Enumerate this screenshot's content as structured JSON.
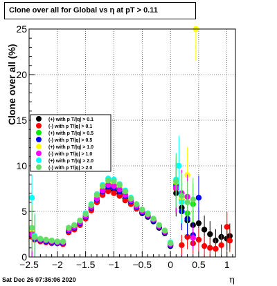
{
  "title": "Clone  over all for Global vs   η at pT > 0.11",
  "date_stamp": "Sat Dec 26 07:36:06 2020",
  "chart_data": {
    "type": "scatter",
    "title": "Clone  over all for Global vs   η at pT > 0.11",
    "xlabel": "η",
    "ylabel": "Clone  over all (%)",
    "xlim": [
      -2.5,
      1.15
    ],
    "ylim": [
      0,
      25
    ],
    "x_ticks": [
      -2.5,
      -2,
      -1.5,
      -1,
      -0.5,
      0,
      0.5,
      1
    ],
    "x_tick_labels": [
      "−2.5",
      "−2",
      "−1.5",
      "−1",
      "−0.5",
      "0",
      "0.5",
      "1"
    ],
    "y_ticks": [
      0,
      5,
      10,
      15,
      20,
      25
    ],
    "y_tick_labels": [
      "0",
      "5",
      "10",
      "15",
      "20",
      "25"
    ],
    "grid": true,
    "legend_position": "left-middle",
    "series": [
      {
        "name": "(+) with p T/|q| > 0.1",
        "color": "#000000",
        "points": [
          [
            -2.45,
            2.6
          ],
          [
            -2.4,
            2.0
          ],
          [
            -2.3,
            1.8
          ],
          [
            -2.2,
            1.7
          ],
          [
            -2.1,
            1.6
          ],
          [
            -2.0,
            1.5
          ],
          [
            -1.9,
            1.5
          ],
          [
            -1.8,
            2.8
          ],
          [
            -1.7,
            3.1
          ],
          [
            -1.6,
            3.6
          ],
          [
            -1.5,
            4.3
          ],
          [
            -1.4,
            5.2
          ],
          [
            -1.3,
            6.1
          ],
          [
            -1.2,
            7.0
          ],
          [
            -1.1,
            7.5
          ],
          [
            -1.0,
            7.3
          ],
          [
            -0.9,
            6.9
          ],
          [
            -0.8,
            6.4
          ],
          [
            -0.7,
            5.9
          ],
          [
            -0.6,
            5.3
          ],
          [
            -0.5,
            4.8
          ],
          [
            -0.4,
            4.4
          ],
          [
            -0.3,
            3.9
          ],
          [
            -0.2,
            3.2
          ],
          [
            -0.1,
            2.6
          ],
          [
            0.0,
            1.2
          ],
          [
            0.1,
            7.0
          ],
          [
            0.2,
            5.4
          ],
          [
            0.3,
            4.0
          ],
          [
            0.4,
            3.5
          ],
          [
            0.5,
            3.7
          ],
          [
            0.6,
            3.0
          ],
          [
            0.7,
            2.5
          ],
          [
            0.8,
            1.8
          ],
          [
            0.9,
            2.2
          ],
          [
            1.0,
            2.0
          ],
          [
            1.05,
            2.3
          ]
        ]
      },
      {
        "name": "(-) with p T/|q| > 0.1",
        "color": "#ff0000",
        "points": [
          [
            -2.45,
            2.2
          ],
          [
            -2.4,
            1.9
          ],
          [
            -2.3,
            1.7
          ],
          [
            -2.2,
            1.6
          ],
          [
            -2.1,
            1.5
          ],
          [
            -2.0,
            1.5
          ],
          [
            -1.9,
            1.4
          ],
          [
            -1.8,
            2.7
          ],
          [
            -1.7,
            3.0
          ],
          [
            -1.6,
            3.5
          ],
          [
            -1.5,
            4.2
          ],
          [
            -1.4,
            5.1
          ],
          [
            -1.3,
            6.0
          ],
          [
            -1.2,
            6.8
          ],
          [
            -1.1,
            7.2
          ],
          [
            -1.0,
            7.0
          ],
          [
            -0.9,
            6.7
          ],
          [
            -0.8,
            6.2
          ],
          [
            -0.7,
            5.8
          ],
          [
            -0.6,
            5.3
          ],
          [
            -0.5,
            4.9
          ],
          [
            -0.4,
            4.5
          ],
          [
            -0.3,
            4.0
          ],
          [
            -0.2,
            3.3
          ],
          [
            -0.1,
            2.7
          ],
          [
            0.0,
            1.3
          ],
          [
            0.1,
            7.5
          ],
          [
            0.2,
            1.3
          ],
          [
            0.3,
            2.2
          ],
          [
            0.4,
            1.5
          ],
          [
            0.5,
            1.9
          ],
          [
            0.6,
            1.2
          ],
          [
            0.7,
            1.0
          ],
          [
            0.8,
            0.9
          ],
          [
            0.9,
            1.3
          ],
          [
            1.0,
            3.3
          ],
          [
            1.05,
            1.8
          ]
        ]
      },
      {
        "name": "(+) with p T/|q| > 0.5",
        "color": "#00ee00",
        "points": [
          [
            -2.45,
            2.9
          ],
          [
            -2.4,
            2.1
          ],
          [
            -2.3,
            1.9
          ],
          [
            -2.2,
            1.8
          ],
          [
            -2.1,
            1.7
          ],
          [
            -2.0,
            1.6
          ],
          [
            -1.9,
            1.6
          ],
          [
            -1.8,
            3.0
          ],
          [
            -1.7,
            3.3
          ],
          [
            -1.6,
            3.8
          ],
          [
            -1.5,
            4.5
          ],
          [
            -1.4,
            5.5
          ],
          [
            -1.3,
            6.5
          ],
          [
            -1.2,
            7.4
          ],
          [
            -1.1,
            8.0
          ],
          [
            -1.0,
            7.9
          ],
          [
            -0.9,
            7.5
          ],
          [
            -0.8,
            6.9
          ],
          [
            -0.7,
            6.2
          ],
          [
            -0.6,
            5.6
          ],
          [
            -0.5,
            5.0
          ],
          [
            -0.4,
            4.6
          ],
          [
            -0.3,
            4.1
          ],
          [
            -0.2,
            3.4
          ],
          [
            -0.1,
            2.8
          ],
          [
            0.0,
            1.4
          ],
          [
            0.1,
            8.0
          ],
          [
            0.2,
            6.3
          ],
          [
            0.3,
            4.8
          ],
          [
            0.4,
            5.8
          ]
        ]
      },
      {
        "name": "(-) with p T/|q| > 0.5",
        "color": "#0000ff",
        "points": [
          [
            -2.45,
            2.4
          ],
          [
            -2.4,
            2.0
          ],
          [
            -2.3,
            1.8
          ],
          [
            -2.2,
            1.7
          ],
          [
            -2.1,
            1.6
          ],
          [
            -2.0,
            1.5
          ],
          [
            -1.9,
            1.5
          ],
          [
            -1.8,
            2.9
          ],
          [
            -1.7,
            3.2
          ],
          [
            -1.6,
            3.7
          ],
          [
            -1.5,
            4.4
          ],
          [
            -1.4,
            5.4
          ],
          [
            -1.3,
            6.3
          ],
          [
            -1.2,
            7.2
          ],
          [
            -1.1,
            7.7
          ],
          [
            -1.0,
            7.6
          ],
          [
            -0.9,
            7.2
          ],
          [
            -0.8,
            6.7
          ],
          [
            -0.7,
            6.1
          ],
          [
            -0.6,
            5.5
          ],
          [
            -0.5,
            4.9
          ],
          [
            -0.4,
            4.5
          ],
          [
            -0.3,
            4.0
          ],
          [
            -0.2,
            3.3
          ],
          [
            -0.1,
            2.7
          ],
          [
            0.0,
            1.3
          ],
          [
            0.1,
            7.8
          ],
          [
            0.2,
            5.0
          ],
          [
            0.3,
            4.2
          ],
          [
            0.4,
            2.4
          ],
          [
            0.5,
            6.5
          ]
        ]
      },
      {
        "name": "(+) with p T/|q| > 1.0",
        "color": "#ffff00",
        "points": [
          [
            -2.45,
            3.0
          ],
          [
            -2.4,
            2.2
          ],
          [
            -2.3,
            2.0
          ],
          [
            -2.2,
            1.9
          ],
          [
            -2.1,
            1.8
          ],
          [
            -2.0,
            1.7
          ],
          [
            -1.9,
            1.7
          ],
          [
            -1.8,
            3.1
          ],
          [
            -1.7,
            3.4
          ],
          [
            -1.6,
            3.9
          ],
          [
            -1.5,
            4.6
          ],
          [
            -1.4,
            5.6
          ],
          [
            -1.3,
            6.6
          ],
          [
            -1.2,
            7.6
          ],
          [
            -1.1,
            8.2
          ],
          [
            -1.0,
            8.1
          ],
          [
            -0.9,
            7.7
          ],
          [
            -0.8,
            7.1
          ],
          [
            -0.7,
            6.3
          ],
          [
            -0.6,
            5.7
          ],
          [
            -0.5,
            5.1
          ],
          [
            -0.4,
            4.7
          ],
          [
            -0.3,
            4.2
          ],
          [
            -0.2,
            3.5
          ],
          [
            -0.1,
            2.9
          ],
          [
            0.0,
            1.5
          ],
          [
            0.1,
            8.2
          ],
          [
            0.2,
            6.5
          ],
          [
            0.3,
            9.0
          ],
          [
            0.45,
            25.0
          ]
        ]
      },
      {
        "name": "(-) with p T/|q| > 1.0",
        "color": "#ff00ff",
        "points": [
          [
            -2.45,
            2.5
          ],
          [
            -2.4,
            2.1
          ],
          [
            -2.3,
            1.9
          ],
          [
            -2.2,
            1.8
          ],
          [
            -2.1,
            1.7
          ],
          [
            -2.0,
            1.6
          ],
          [
            -1.9,
            1.6
          ],
          [
            -1.8,
            3.0
          ],
          [
            -1.7,
            3.3
          ],
          [
            -1.6,
            3.8
          ],
          [
            -1.5,
            4.5
          ],
          [
            -1.4,
            5.5
          ],
          [
            -1.3,
            6.4
          ],
          [
            -1.2,
            7.3
          ],
          [
            -1.1,
            7.9
          ],
          [
            -1.0,
            7.8
          ],
          [
            -0.9,
            7.4
          ],
          [
            -0.8,
            6.8
          ],
          [
            -0.7,
            6.2
          ],
          [
            -0.6,
            5.6
          ],
          [
            -0.5,
            5.0
          ],
          [
            -0.4,
            4.6
          ],
          [
            -0.3,
            4.1
          ],
          [
            -0.2,
            3.4
          ],
          [
            -0.1,
            2.8
          ],
          [
            0.0,
            1.4
          ],
          [
            0.1,
            7.6
          ],
          [
            0.2,
            7.0
          ],
          [
            0.3,
            6.6
          ],
          [
            0.4,
            2.1
          ]
        ]
      },
      {
        "name": "(+) with p T/|q| > 2.0",
        "color": "#00ffff",
        "points": [
          [
            -2.45,
            6.5
          ],
          [
            -2.4,
            2.3
          ],
          [
            -2.3,
            2.0
          ],
          [
            -2.2,
            1.9
          ],
          [
            -2.1,
            1.8
          ],
          [
            -2.0,
            1.7
          ],
          [
            -1.9,
            1.7
          ],
          [
            -1.8,
            3.2
          ],
          [
            -1.7,
            3.5
          ],
          [
            -1.6,
            4.0
          ],
          [
            -1.5,
            4.8
          ],
          [
            -1.4,
            5.8
          ],
          [
            -1.3,
            6.9
          ],
          [
            -1.2,
            7.9
          ],
          [
            -1.1,
            8.6
          ],
          [
            -1.0,
            8.5
          ],
          [
            -0.9,
            8.0
          ],
          [
            -0.8,
            7.3
          ],
          [
            -0.7,
            6.5
          ],
          [
            -0.6,
            5.8
          ],
          [
            -0.5,
            5.2
          ],
          [
            -0.4,
            4.8
          ],
          [
            -0.3,
            4.2
          ],
          [
            -0.2,
            3.5
          ],
          [
            -0.1,
            2.9
          ],
          [
            0.0,
            1.6
          ],
          [
            0.1,
            8.5
          ],
          [
            0.15,
            10.0
          ],
          [
            0.2,
            6.0
          ]
        ]
      },
      {
        "name": "(-) with p T/|q| > 2.0",
        "color": "#66dd66",
        "points": [
          [
            -2.45,
            3.2
          ],
          [
            -2.4,
            2.2
          ],
          [
            -2.3,
            2.0
          ],
          [
            -2.2,
            1.9
          ],
          [
            -2.1,
            1.8
          ],
          [
            -2.0,
            1.7
          ],
          [
            -1.9,
            1.7
          ],
          [
            -1.8,
            3.2
          ],
          [
            -1.7,
            3.5
          ],
          [
            -1.6,
            4.0
          ],
          [
            -1.5,
            4.7
          ],
          [
            -1.4,
            5.7
          ],
          [
            -1.3,
            6.8
          ],
          [
            -1.2,
            7.8
          ],
          [
            -1.1,
            8.4
          ],
          [
            -1.0,
            8.3
          ],
          [
            -0.9,
            7.9
          ],
          [
            -0.8,
            7.2
          ],
          [
            -0.7,
            6.4
          ],
          [
            -0.6,
            5.8
          ],
          [
            -0.5,
            5.2
          ],
          [
            -0.4,
            4.7
          ],
          [
            -0.3,
            4.2
          ],
          [
            -0.2,
            3.5
          ],
          [
            -0.1,
            2.9
          ],
          [
            0.0,
            1.5
          ],
          [
            0.1,
            8.3
          ],
          [
            0.2,
            6.7
          ],
          [
            0.3,
            6.0
          ],
          [
            0.4,
            6.3
          ]
        ]
      }
    ]
  }
}
